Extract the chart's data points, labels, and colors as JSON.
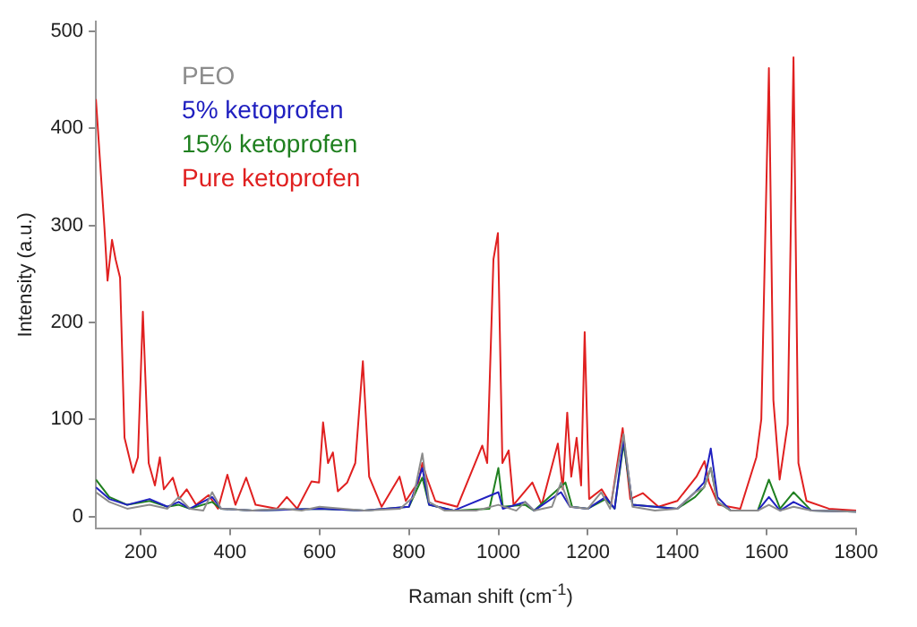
{
  "chart_data": {
    "type": "line",
    "xlabel": "Raman shift (cm$^{-1}$)",
    "ylabel": "Intensity (a.u.)",
    "xlim": [
      100,
      1800
    ],
    "xticks": [
      200,
      400,
      600,
      800,
      1000,
      1200,
      1400,
      1600,
      1800
    ],
    "ylim": [
      -12,
      510
    ],
    "yticks": [
      0,
      100,
      200,
      300,
      400,
      500
    ],
    "grid": false,
    "legend": "top left",
    "marker": "none",
    "line_style": "solid",
    "series": [
      {
        "name": "PEO",
        "color": "#8c8c8c",
        "x": [
          100,
          130,
          170,
          220,
          260,
          285,
          310,
          340,
          360,
          380,
          450,
          520,
          560,
          600,
          700,
          780,
          810,
          830,
          845,
          880,
          950,
          1000,
          1040,
          1060,
          1080,
          1120,
          1140,
          1160,
          1200,
          1230,
          1250,
          1280,
          1300,
          1350,
          1400,
          1440,
          1460,
          1475,
          1490,
          1520,
          1580,
          1605,
          1630,
          1660,
          1700,
          1800
        ],
        "values": [
          25,
          15,
          8,
          12,
          8,
          20,
          8,
          6,
          25,
          8,
          6,
          8,
          6,
          10,
          6,
          8,
          20,
          65,
          15,
          6,
          6,
          12,
          6,
          15,
          6,
          10,
          35,
          10,
          8,
          25,
          8,
          85,
          10,
          6,
          8,
          25,
          30,
          50,
          15,
          6,
          6,
          12,
          6,
          10,
          6,
          5
        ]
      },
      {
        "name": "5% ketoprofen",
        "color": "#2020c0",
        "x": [
          100,
          130,
          170,
          220,
          260,
          285,
          310,
          360,
          380,
          450,
          600,
          700,
          800,
          830,
          845,
          900,
          1000,
          1010,
          1060,
          1080,
          1140,
          1160,
          1200,
          1240,
          1260,
          1280,
          1300,
          1400,
          1440,
          1460,
          1475,
          1490,
          1520,
          1580,
          1605,
          1630,
          1660,
          1700,
          1800
        ],
        "values": [
          30,
          18,
          12,
          18,
          10,
          15,
          8,
          20,
          8,
          6,
          8,
          6,
          10,
          50,
          12,
          6,
          25,
          8,
          15,
          6,
          25,
          10,
          8,
          20,
          8,
          80,
          12,
          8,
          25,
          35,
          70,
          20,
          6,
          6,
          20,
          6,
          15,
          6,
          5
        ]
      },
      {
        "name": "15% ketoprofen",
        "color": "#208020",
        "x": [
          100,
          130,
          170,
          220,
          260,
          285,
          310,
          360,
          380,
          450,
          600,
          700,
          800,
          830,
          845,
          900,
          980,
          1000,
          1010,
          1060,
          1080,
          1150,
          1165,
          1200,
          1240,
          1260,
          1280,
          1300,
          1400,
          1440,
          1460,
          1475,
          1490,
          1520,
          1580,
          1605,
          1630,
          1660,
          1700,
          1800
        ],
        "values": [
          38,
          20,
          12,
          16,
          10,
          12,
          8,
          15,
          8,
          6,
          8,
          6,
          10,
          40,
          12,
          6,
          8,
          50,
          10,
          12,
          6,
          35,
          10,
          8,
          18,
          8,
          75,
          12,
          8,
          20,
          30,
          50,
          15,
          6,
          6,
          38,
          8,
          25,
          6,
          5
        ]
      },
      {
        "name": "Pure ketoprofen",
        "color": "#e02020",
        "x": [
          100,
          119,
          126,
          136,
          144,
          154,
          164,
          183,
          194,
          205,
          218,
          232,
          243,
          252,
          272,
          286,
          303,
          324,
          352,
          373,
          394,
          412,
          436,
          457,
          505,
          527,
          550,
          582,
          599,
          608,
          619,
          630,
          641,
          662,
          680,
          697,
          711,
          739,
          779,
          793,
          810,
          821,
          830,
          840,
          859,
          908,
          964,
          975,
          989,
          999,
          1009,
          1023,
          1034,
          1076,
          1097,
          1133,
          1144,
          1154,
          1163,
          1175,
          1185,
          1193,
          1203,
          1231,
          1252,
          1278,
          1295,
          1323,
          1358,
          1400,
          1443,
          1461,
          1471,
          1492,
          1541,
          1577,
          1588,
          1605,
          1615,
          1629,
          1647,
          1660,
          1671,
          1689,
          1739,
          1800
        ],
        "values": [
          430,
          298,
          243,
          285,
          265,
          246,
          81,
          45,
          61,
          211,
          55,
          32,
          61,
          28,
          40,
          18,
          28,
          12,
          22,
          8,
          43,
          12,
          40,
          12,
          8,
          20,
          8,
          36,
          35,
          97,
          55,
          66,
          26,
          35,
          55,
          160,
          41,
          10,
          41,
          16,
          28,
          35,
          55,
          40,
          16,
          10,
          73,
          55,
          265,
          292,
          55,
          68,
          12,
          35,
          12,
          75,
          28,
          107,
          41,
          81,
          32,
          190,
          18,
          28,
          12,
          91,
          18,
          24,
          10,
          16,
          41,
          57,
          35,
          12,
          8,
          61,
          100,
          462,
          120,
          38,
          95,
          473,
          55,
          16,
          8,
          6
        ]
      }
    ]
  }
}
